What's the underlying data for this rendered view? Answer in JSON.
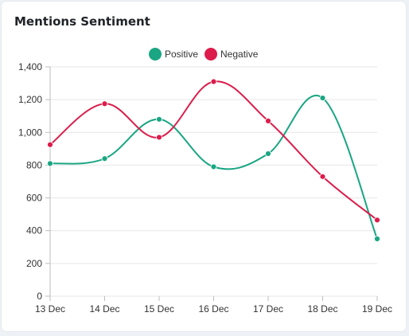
{
  "card": {
    "title": "Mentions Sentiment"
  },
  "chart_data": {
    "type": "line",
    "title": "",
    "xlabel": "",
    "ylabel": "",
    "categories": [
      "13 Dec",
      "14 Dec",
      "15 Dec",
      "16 Dec",
      "17 Dec",
      "18 Dec",
      "19 Dec"
    ],
    "series": [
      {
        "name": "Positive",
        "color": "#1aa683",
        "values": [
          810,
          840,
          1080,
          790,
          870,
          1210,
          350
        ]
      },
      {
        "name": "Negative",
        "color": "#dc1c4b",
        "values": [
          925,
          1175,
          970,
          1310,
          1070,
          730,
          465
        ]
      }
    ],
    "ylim": [
      0,
      1400
    ],
    "yticks": [
      0,
      200,
      400,
      600,
      800,
      1000,
      1200,
      1400
    ],
    "ytick_labels": [
      "0",
      "200",
      "400",
      "600",
      "800",
      "1,000",
      "1,200",
      "1,400"
    ],
    "grid": true,
    "legend": "top-center",
    "smooth": true
  }
}
